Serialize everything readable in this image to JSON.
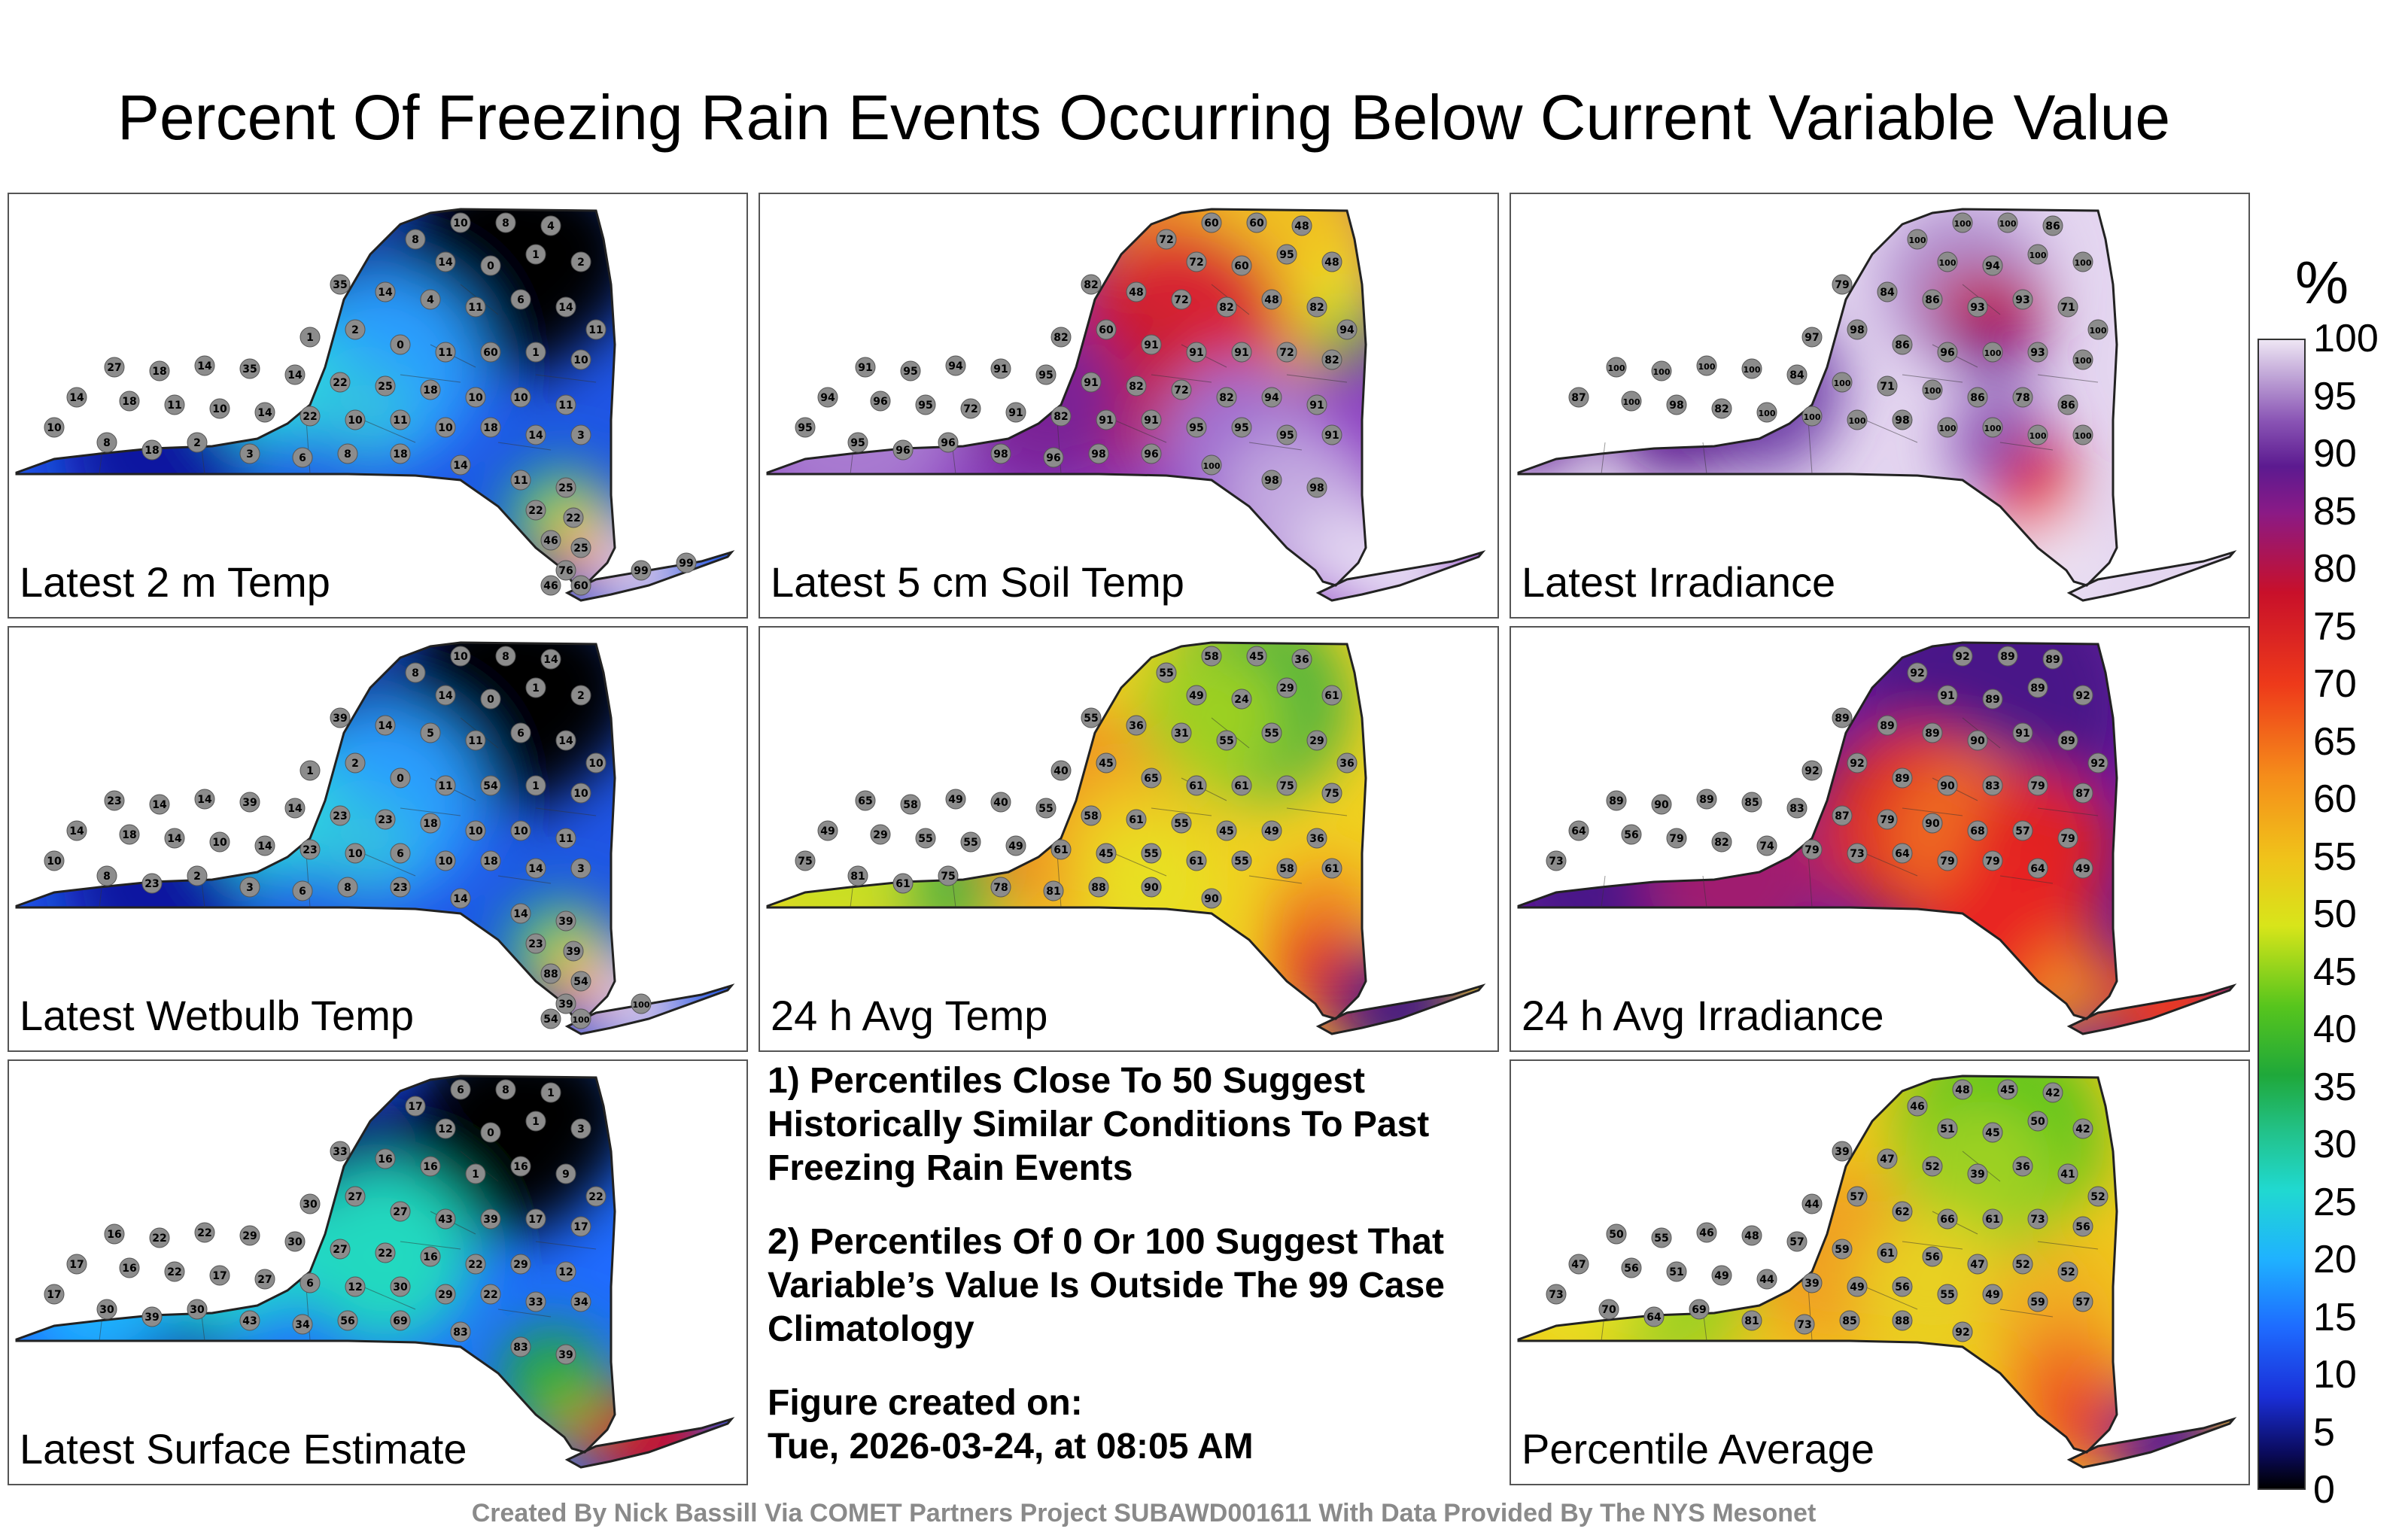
{
  "title": "Percent Of Freezing Rain Events Occurring Below Current Variable Value",
  "colors": {
    "map_fill_default": "#1e3fd0",
    "station_marker": "#8c8c8c",
    "county_lines": "#333333"
  },
  "panels": [
    {
      "label": "Latest 2 m Temp",
      "theme": "cold",
      "stations": [
        "10",
        "8",
        "4",
        "8",
        "14",
        "0",
        "1",
        "2",
        "35",
        "14",
        "4",
        "11",
        "6",
        "14",
        "11",
        "1",
        "2",
        "0",
        "11",
        "60",
        "1",
        "10",
        "27",
        "18",
        "14",
        "35",
        "14",
        "22",
        "25",
        "18",
        "10",
        "10",
        "11",
        "14",
        "18",
        "11",
        "10",
        "14",
        "22",
        "10",
        "11",
        "10",
        "18",
        "14",
        "3",
        "10",
        "8",
        "18",
        "2",
        "3",
        "6",
        "8",
        "18",
        "14",
        "11",
        "25",
        "22",
        "22",
        "46",
        "25",
        "76",
        "46",
        "60",
        "99",
        "99"
      ]
    },
    {
      "label": "Latest 5 cm Soil Temp",
      "theme": "warm",
      "stations": [
        "60",
        "60",
        "48",
        "72",
        "72",
        "60",
        "95",
        "48",
        "82",
        "48",
        "72",
        "82",
        "48",
        "82",
        "94",
        "82",
        "60",
        "91",
        "91",
        "91",
        "72",
        "82",
        "91",
        "95",
        "94",
        "91",
        "95",
        "91",
        "82",
        "72",
        "82",
        "94",
        "91",
        "94",
        "96",
        "95",
        "72",
        "91",
        "82",
        "91",
        "91",
        "95",
        "95",
        "95",
        "91",
        "95",
        "95",
        "96",
        "96",
        "98",
        "96",
        "98",
        "96",
        "100",
        "98",
        "98"
      ]
    },
    {
      "label": "Latest Irradiance",
      "theme": "purple",
      "stations": [
        "100",
        "100",
        "86",
        "100",
        "100",
        "94",
        "100",
        "100",
        "79",
        "84",
        "86",
        "93",
        "93",
        "71",
        "100",
        "97",
        "98",
        "86",
        "96",
        "100",
        "93",
        "100",
        "100",
        "100",
        "100",
        "100",
        "84",
        "100",
        "71",
        "100",
        "86",
        "78",
        "86",
        "87",
        "100",
        "98",
        "82",
        "100",
        "100",
        "100",
        "98",
        "100",
        "100",
        "100",
        "100"
      ]
    },
    {
      "label": "Latest Wetbulb Temp",
      "theme": "cold",
      "stations": [
        "10",
        "8",
        "14",
        "8",
        "14",
        "0",
        "1",
        "2",
        "39",
        "14",
        "5",
        "11",
        "6",
        "14",
        "10",
        "1",
        "2",
        "0",
        "11",
        "54",
        "1",
        "10",
        "23",
        "14",
        "14",
        "39",
        "14",
        "23",
        "23",
        "18",
        "10",
        "10",
        "11",
        "14",
        "18",
        "14",
        "10",
        "14",
        "23",
        "10",
        "6",
        "10",
        "18",
        "14",
        "3",
        "10",
        "8",
        "23",
        "2",
        "3",
        "6",
        "8",
        "23",
        "14",
        "14",
        "39",
        "23",
        "39",
        "88",
        "54",
        "39",
        "54",
        "100",
        "100"
      ]
    },
    {
      "label": "24 h Avg Temp",
      "theme": "avgtemp",
      "stations": [
        "58",
        "45",
        "36",
        "55",
        "49",
        "24",
        "29",
        "61",
        "55",
        "36",
        "31",
        "55",
        "55",
        "29",
        "36",
        "40",
        "45",
        "65",
        "61",
        "61",
        "75",
        "75",
        "65",
        "58",
        "49",
        "40",
        "55",
        "58",
        "61",
        "55",
        "45",
        "49",
        "36",
        "49",
        "29",
        "55",
        "55",
        "49",
        "61",
        "45",
        "55",
        "61",
        "55",
        "58",
        "61",
        "75",
        "81",
        "61",
        "75",
        "78",
        "81",
        "88",
        "90",
        "90"
      ]
    },
    {
      "label": "24 h Avg Irradiance",
      "theme": "irr24",
      "stations": [
        "92",
        "89",
        "89",
        "92",
        "91",
        "89",
        "89",
        "92",
        "89",
        "89",
        "89",
        "90",
        "91",
        "89",
        "92",
        "92",
        "92",
        "89",
        "90",
        "83",
        "79",
        "87",
        "89",
        "90",
        "89",
        "85",
        "83",
        "87",
        "79",
        "90",
        "68",
        "57",
        "79",
        "64",
        "56",
        "79",
        "82",
        "74",
        "79",
        "73",
        "64",
        "79",
        "79",
        "64",
        "49",
        "73"
      ]
    },
    {
      "label": "Latest Surface Estimate",
      "theme": "surface",
      "stations": [
        "6",
        "8",
        "1",
        "17",
        "12",
        "0",
        "1",
        "3",
        "33",
        "16",
        "16",
        "1",
        "16",
        "9",
        "22",
        "30",
        "27",
        "27",
        "43",
        "39",
        "17",
        "17",
        "16",
        "22",
        "22",
        "29",
        "30",
        "27",
        "22",
        "16",
        "22",
        "29",
        "12",
        "17",
        "16",
        "22",
        "17",
        "27",
        "6",
        "12",
        "30",
        "29",
        "22",
        "33",
        "34",
        "17",
        "30",
        "39",
        "30",
        "43",
        "34",
        "56",
        "69",
        "83",
        "83",
        "39"
      ]
    },
    {
      "label": "Percentile Average",
      "theme": "average",
      "stations": [
        "48",
        "45",
        "42",
        "46",
        "51",
        "45",
        "50",
        "42",
        "39",
        "47",
        "52",
        "39",
        "36",
        "41",
        "52",
        "44",
        "57",
        "62",
        "66",
        "61",
        "73",
        "56",
        "50",
        "55",
        "46",
        "48",
        "57",
        "59",
        "61",
        "56",
        "47",
        "52",
        "52",
        "47",
        "56",
        "51",
        "49",
        "44",
        "39",
        "49",
        "56",
        "55",
        "49",
        "59",
        "57",
        "73",
        "70",
        "64",
        "69",
        "81",
        "73",
        "85",
        "88",
        "92"
      ]
    }
  ],
  "notes": {
    "note1": "1) Percentiles Close To 50 Suggest Historically Similar Conditions To Past Freezing Rain Events",
    "note2": "2) Percentiles Of 0 Or 100 Suggest That Variable’s Value Is Outside The 99 Case Climatology",
    "created_label": "Figure created on:",
    "created_value": "Tue, 2026-03-24, at 08:05 AM"
  },
  "colorbar": {
    "unit": "%",
    "ticks": [
      "100",
      "95",
      "90",
      "85",
      "80",
      "75",
      "70",
      "65",
      "60",
      "55",
      "50",
      "45",
      "40",
      "35",
      "30",
      "25",
      "20",
      "15",
      "10",
      "5",
      "0"
    ]
  },
  "footer": "Created By Nick Bassill Via COMET Partners Project SUBAWD001611 With Data Provided By The NYS Mesonet"
}
